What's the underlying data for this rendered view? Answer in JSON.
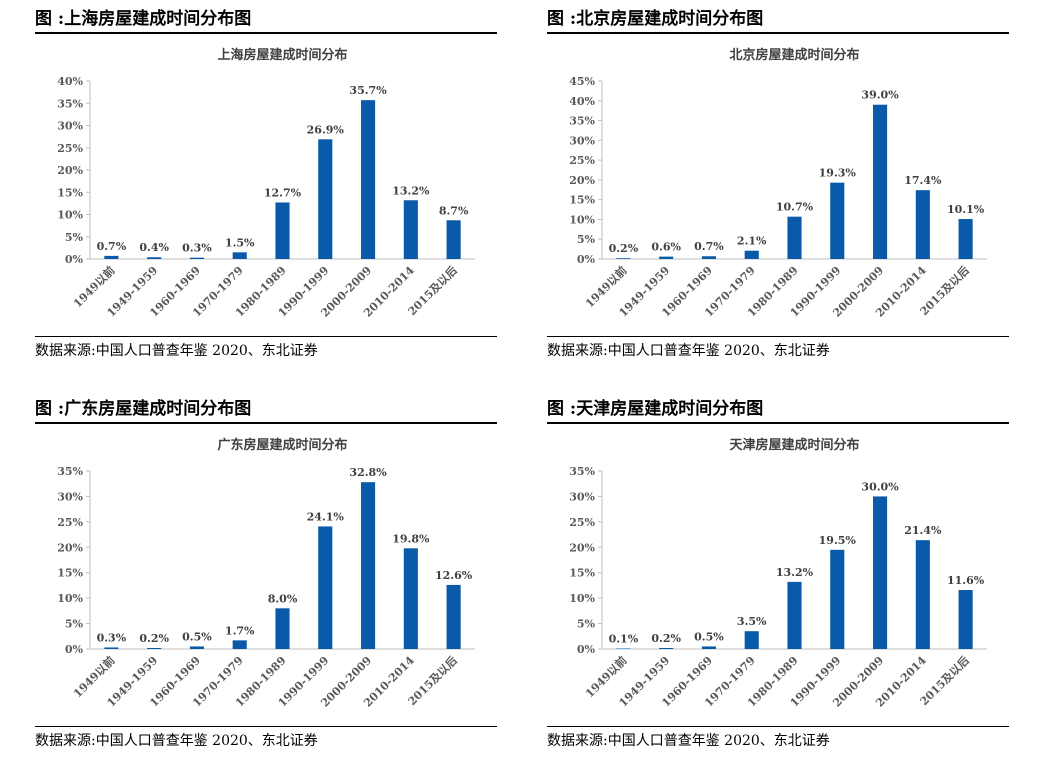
{
  "colors": {
    "bar": "#0a5aaa",
    "axis": "#bfbfbf"
  },
  "panels": [
    {
      "figure_title": "图 :上海房屋建成时间分布图",
      "source": "数据来源:中国人口普查年鉴 2020、东北证券",
      "chart_data": {
        "type": "bar",
        "title": "上海房屋建成时间分布",
        "categories": [
          "1949以前",
          "1949-1959",
          "1960-1969",
          "1970-1979",
          "1980-1989",
          "1990-1999",
          "2000-2009",
          "2010-2014",
          "2015及以后"
        ],
        "values": [
          0.7,
          0.4,
          0.3,
          1.5,
          12.7,
          26.9,
          35.7,
          13.2,
          8.7
        ],
        "data_labels": [
          "0.7%",
          "0.4%",
          "0.3%",
          "1.5%",
          "12.7%",
          "26.9%",
          "35.7%",
          "13.2%",
          "8.7%"
        ],
        "ylim": [
          0,
          40
        ],
        "yticks": [
          "0%",
          "5%",
          "10%",
          "15%",
          "20%",
          "25%",
          "30%",
          "35%",
          "40%"
        ],
        "grid": false
      }
    },
    {
      "figure_title": "图 :北京房屋建成时间分布图",
      "source": "数据来源:中国人口普查年鉴 2020、东北证券",
      "chart_data": {
        "type": "bar",
        "title": "北京房屋建成时间分布",
        "categories": [
          "1949以前",
          "1949-1959",
          "1960-1969",
          "1970-1979",
          "1980-1989",
          "1990-1999",
          "2000-2009",
          "2010-2014",
          "2015及以后"
        ],
        "values": [
          0.2,
          0.6,
          0.7,
          2.1,
          10.7,
          19.3,
          39.0,
          17.4,
          10.1
        ],
        "data_labels": [
          "0.2%",
          "0.6%",
          "0.7%",
          "2.1%",
          "10.7%",
          "19.3%",
          "39.0%",
          "17.4%",
          "10.1%"
        ],
        "ylim": [
          0,
          45
        ],
        "yticks": [
          "0%",
          "5%",
          "10%",
          "15%",
          "20%",
          "25%",
          "30%",
          "35%",
          "40%",
          "45%"
        ],
        "grid": false
      }
    },
    {
      "figure_title": "图 :广东房屋建成时间分布图",
      "source": "数据来源:中国人口普查年鉴 2020、东北证券",
      "chart_data": {
        "type": "bar",
        "title": "广东房屋建成时间分布",
        "categories": [
          "1949以前",
          "1949-1959",
          "1960-1969",
          "1970-1979",
          "1980-1989",
          "1990-1999",
          "2000-2009",
          "2010-2014",
          "2015及以后"
        ],
        "values": [
          0.3,
          0.2,
          0.5,
          1.7,
          8.0,
          24.1,
          32.8,
          19.8,
          12.6
        ],
        "data_labels": [
          "0.3%",
          "0.2%",
          "0.5%",
          "1.7%",
          "8.0%",
          "24.1%",
          "32.8%",
          "19.8%",
          "12.6%"
        ],
        "ylim": [
          0,
          35
        ],
        "yticks": [
          "0%",
          "5%",
          "10%",
          "15%",
          "20%",
          "25%",
          "30%",
          "35%"
        ],
        "grid": false
      }
    },
    {
      "figure_title": "图 :天津房屋建成时间分布图",
      "source": "数据来源:中国人口普查年鉴 2020、东北证券",
      "chart_data": {
        "type": "bar",
        "title": "天津房屋建成时间分布",
        "categories": [
          "1949以前",
          "1949-1959",
          "1960-1969",
          "1970-1979",
          "1980-1989",
          "1990-1999",
          "2000-2009",
          "2010-2014",
          "2015及以后"
        ],
        "values": [
          0.1,
          0.2,
          0.5,
          3.5,
          13.2,
          19.5,
          30.0,
          21.4,
          11.6
        ],
        "data_labels": [
          "0.1%",
          "0.2%",
          "0.5%",
          "3.5%",
          "13.2%",
          "19.5%",
          "30.0%",
          "21.4%",
          "11.6%"
        ],
        "ylim": [
          0,
          35
        ],
        "yticks": [
          "0%",
          "5%",
          "10%",
          "15%",
          "20%",
          "25%",
          "30%",
          "35%"
        ],
        "grid": false
      }
    }
  ]
}
